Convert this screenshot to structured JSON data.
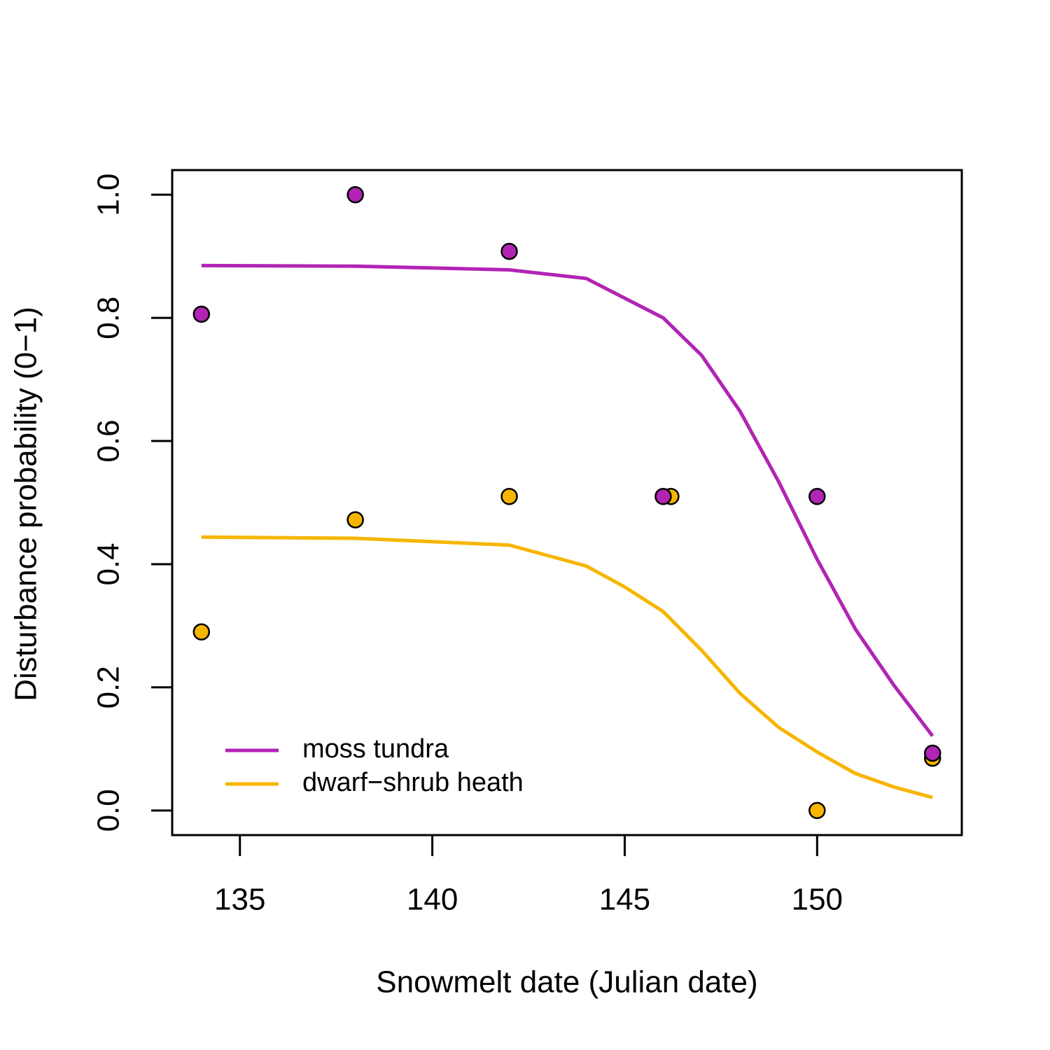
{
  "chart_data": {
    "type": "scatter",
    "xlabel": "Snowmelt date (Julian date)",
    "ylabel": "Disturbance probability (0−1)",
    "xlim": [
      133.24,
      153.76
    ],
    "ylim": [
      -0.04,
      1.04
    ],
    "xticks": [
      135,
      140,
      145,
      150
    ],
    "yticks": [
      {
        "value": 0,
        "label": "0.0"
      },
      0.2,
      0.4,
      0.6,
      0.8,
      {
        "value": 1,
        "label": "1.0"
      }
    ],
    "legend": "bottomleft",
    "series": [
      {
        "name": "dwarf−shrub heath",
        "color": "#f7b500",
        "x": [
          134,
          138,
          142,
          146.2,
          150,
          153
        ],
        "values": [
          0.29,
          0.472,
          0.51,
          0.51,
          0,
          0.085
        ],
        "fit": {
          "x": [
            134,
            138,
            142,
            144,
            145,
            146,
            147,
            148,
            149,
            150,
            151,
            152,
            153
          ],
          "values": [
            0.444,
            0.442,
            0.431,
            0.397,
            0.363,
            0.323,
            0.26,
            0.19,
            0.135,
            0.095,
            0.06,
            0.038,
            0.021
          ]
        }
      },
      {
        "name": "moss tundra",
        "color": "#b124b4",
        "x": [
          134,
          138,
          142,
          146,
          150,
          153
        ],
        "values": [
          0.806,
          1.0,
          0.908,
          0.51,
          0.51,
          0.093
        ],
        "fit": {
          "x": [
            134,
            138,
            142,
            144,
            146,
            147,
            148,
            149,
            150,
            151,
            152,
            153
          ],
          "values": [
            0.885,
            0.884,
            0.878,
            0.864,
            0.8,
            0.739,
            0.648,
            0.534,
            0.408,
            0.294,
            0.203,
            0.121
          ]
        }
      }
    ]
  }
}
